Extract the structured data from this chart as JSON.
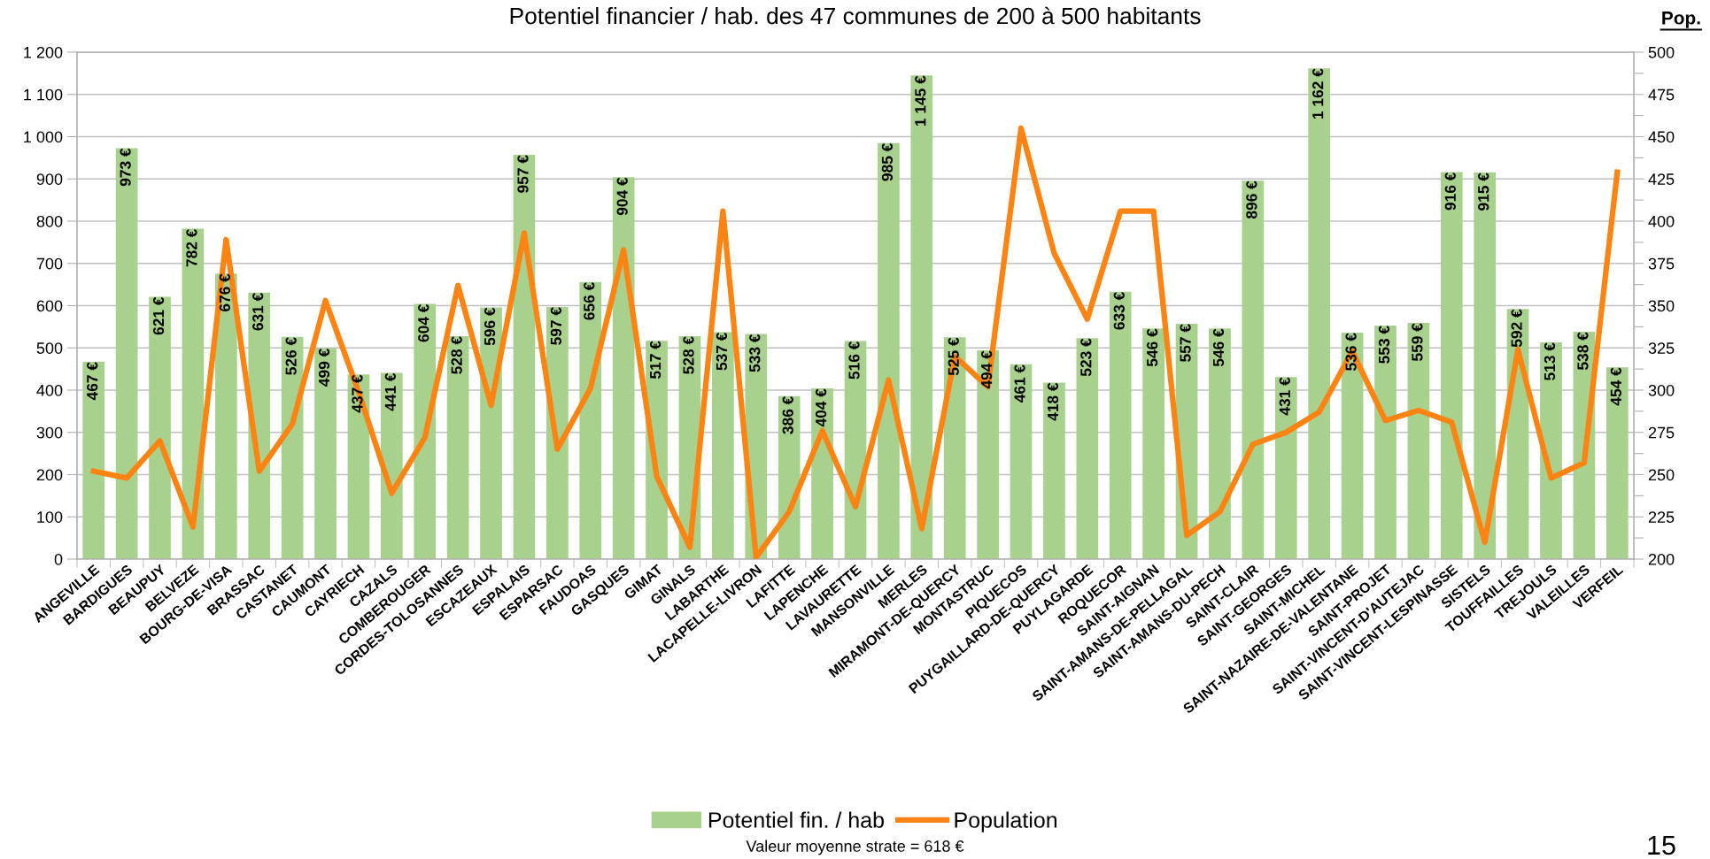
{
  "chart_data": {
    "type": "bar",
    "title": "Potentiel financier / hab. des 47 communes de 200 à 500 habitants",
    "y2label": "Pop.",
    "categories": [
      "ANGEVILLE",
      "BARDIGUES",
      "BEAUPUY",
      "BELVEZE",
      "BOURG-DE-VISA",
      "BRASSAC",
      "CASTANET",
      "CAUMONT",
      "CAYRIECH",
      "CAZALS",
      "COMBEROUGER",
      "CORDES-TOLOSANNES",
      "ESCAZEAUX",
      "ESPALAIS",
      "ESPARSAC",
      "FAUDOAS",
      "GASQUES",
      "GIMAT",
      "GINALS",
      "LABARTHE",
      "LACAPELLE-LIVRON",
      "LAFITTE",
      "LAPENCHE",
      "LAVAURETTE",
      "MANSONVILLE",
      "MERLES",
      "MIRAMONT-DE-QUERCY",
      "MONTASTRUC",
      "PIQUECOS",
      "PUYGAILLARD-DE-QUERCY",
      "PUYLAGARDE",
      "ROQUECOR",
      "SAINT-AIGNAN",
      "SAINT-AMANS-DE-PELLAGAL",
      "SAINT-AMANS-DU-PECH",
      "SAINT-CLAIR",
      "SAINT-GEORGES",
      "SAINT-MICHEL",
      "SAINT-NAZAIRE-DE-VALENTANE",
      "SAINT-PROJET",
      "SAINT-VINCENT-D'AUTEJAC",
      "SAINT-VINCENT-LESPINASSE",
      "SISTELS",
      "TOUFFAILLES",
      "TREJOULS",
      "VALEILLES",
      "VERFEIL"
    ],
    "series": [
      {
        "name": "Potentiel fin. / hab",
        "color": "#a9d18e",
        "values": [
          467,
          973,
          621,
          782,
          676,
          631,
          526,
          499,
          437,
          441,
          604,
          528,
          596,
          957,
          597,
          656,
          904,
          517,
          528,
          537,
          533,
          386,
          404,
          516,
          985,
          1145,
          525,
          494,
          461,
          418,
          523,
          633,
          546,
          557,
          546,
          896,
          431,
          1162,
          536,
          553,
          559,
          916,
          915,
          592,
          513,
          538,
          454
        ],
        "value_labels": [
          "467 €",
          "973 €",
          "621 €",
          "782 €",
          "676 €",
          "631 €",
          "526 €",
          "499 €",
          "437 €",
          "441 €",
          "604 €",
          "528 €",
          "596 €",
          "957 €",
          "597 €",
          "656 €",
          "904 €",
          "517 €",
          "528 €",
          "537 €",
          "533 €",
          "386 €",
          "404 €",
          "516 €",
          "985 €",
          "1 145 €",
          "525 €",
          "494 €",
          "461 €",
          "418 €",
          "523 €",
          "633 €",
          "546 €",
          "557 €",
          "546 €",
          "896 €",
          "431 €",
          "1 162 €",
          "536 €",
          "553 €",
          "559 €",
          "916 €",
          "915 €",
          "592 €",
          "513 €",
          "538 €",
          "454 €"
        ]
      },
      {
        "name": "Population",
        "type": "line",
        "axis": "y2",
        "color": "#fd8412",
        "values": [
          252,
          248,
          270,
          219,
          389,
          252,
          280,
          353,
          299,
          239,
          272,
          362,
          291,
          393,
          265,
          301,
          383,
          249,
          207,
          406,
          201,
          228,
          276,
          231,
          306,
          218,
          320,
          302,
          455,
          381,
          342,
          406,
          406,
          214,
          228,
          268,
          275,
          287,
          323,
          282,
          288,
          281,
          210,
          324,
          248,
          257,
          429
        ]
      }
    ],
    "ylim": [
      0,
      1200
    ],
    "yticks": [
      0,
      100,
      200,
      300,
      400,
      500,
      600,
      700,
      800,
      900,
      {
        "value": 1000,
        "label": "1 000"
      },
      {
        "value": 1100,
        "label": "1 100"
      },
      {
        "value": 1200,
        "label": "1 200"
      }
    ],
    "y2lim": [
      200,
      500
    ],
    "y2ticks": [
      200,
      {
        "value": 212.5,
        "label": null
      },
      225,
      {
        "value": 237.5,
        "label": null
      },
      250,
      {
        "value": 262.5,
        "label": null
      },
      275,
      {
        "value": 287.5,
        "label": null
      },
      300,
      {
        "value": 312.5,
        "label": null
      },
      325,
      {
        "value": 337.5,
        "label": null
      },
      350,
      {
        "value": 362.5,
        "label": null
      },
      375,
      {
        "value": 387.5,
        "label": null
      },
      400,
      {
        "value": 412.5,
        "label": null
      },
      425,
      {
        "value": 437.5,
        "label": null
      },
      450,
      {
        "value": 462.5,
        "label": null
      },
      475,
      {
        "value": 487.5,
        "label": null
      },
      500
    ],
    "grid": "y",
    "legend": "bottom",
    "line_style": "solid",
    "marker": "none",
    "annotations": [
      "Valeur moyenne strate = 618 €",
      "15"
    ]
  }
}
